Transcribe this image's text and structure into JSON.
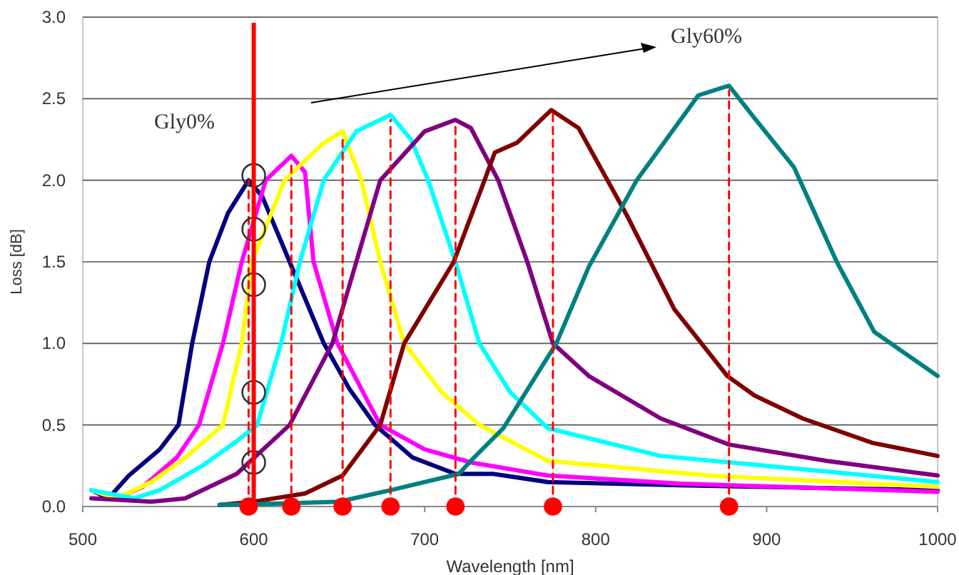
{
  "chart_data": {
    "type": "line",
    "xlabel": "Wavelength [nm]",
    "ylabel": "Loss [dB]",
    "xlim": [
      500,
      1000
    ],
    "ylim": [
      0,
      3
    ],
    "xticks": [
      500,
      600,
      700,
      800,
      900,
      1000
    ],
    "yticks": [
      {
        "value": 0,
        "label": "0.0"
      },
      {
        "value": 0.5,
        "label": "0.5"
      },
      {
        "value": 1,
        "label": "1.0"
      },
      {
        "value": 1.5,
        "label": "1.5"
      },
      {
        "value": 2,
        "label": "2.0"
      },
      {
        "value": 2.5,
        "label": "2.5"
      },
      {
        "value": 3,
        "label": "3.0"
      }
    ],
    "grid": "y",
    "marker": "none",
    "line_style": "solid",
    "annotations": [
      "Gly0%",
      "Gly60%"
    ],
    "ref_lines": [
      {
        "axis": "x",
        "value": 600,
        "color": "#ff0000"
      }
    ],
    "series": [
      {
        "color": "#000080",
        "x": [
          505,
          515,
          527,
          545,
          556,
          564,
          574,
          585,
          597,
          605,
          613,
          621,
          641,
          656,
          671,
          693,
          718,
          740,
          772,
          850,
          1000
        ],
        "values": [
          0.1,
          0.05,
          0.19,
          0.35,
          0.5,
          1.0,
          1.5,
          1.8,
          2.0,
          1.9,
          1.7,
          1.5,
          1.0,
          0.72,
          0.5,
          0.3,
          0.2,
          0.2,
          0.15,
          0.13,
          0.1
        ]
      },
      {
        "color": "#ff00ff",
        "x": [
          505,
          520,
          535,
          555,
          568,
          582,
          593,
          607,
          622,
          630,
          635,
          649,
          674,
          700,
          727,
          772,
          850,
          1000
        ],
        "values": [
          0.1,
          0.05,
          0.12,
          0.3,
          0.5,
          1.0,
          1.5,
          2.0,
          2.15,
          2.05,
          1.5,
          1.0,
          0.5,
          0.35,
          0.27,
          0.19,
          0.14,
          0.09
        ]
      },
      {
        "color": "#ffff00",
        "x": [
          505,
          520,
          540,
          560,
          582,
          593,
          599,
          618,
          640,
          652,
          663,
          674,
          688,
          710,
          732,
          772,
          866,
          1000
        ],
        "values": [
          0.1,
          0.05,
          0.15,
          0.3,
          0.5,
          1.0,
          1.5,
          2.0,
          2.22,
          2.3,
          2.0,
          1.5,
          1.0,
          0.7,
          0.5,
          0.28,
          0.19,
          0.12
        ]
      },
      {
        "color": "#00ffff",
        "x": [
          505,
          530,
          545,
          570,
          590,
          602,
          616,
          627,
          641,
          660,
          680,
          692,
          702,
          718,
          732,
          750,
          772,
          838,
          1000
        ],
        "values": [
          0.1,
          0.05,
          0.1,
          0.25,
          0.4,
          0.5,
          1.0,
          1.5,
          2.0,
          2.3,
          2.4,
          2.25,
          2.0,
          1.5,
          1.0,
          0.7,
          0.48,
          0.31,
          0.15
        ]
      },
      {
        "color": "#800080",
        "x": [
          505,
          540,
          560,
          590,
          621,
          646,
          660,
          674,
          700,
          718,
          727,
          743,
          760,
          775,
          796,
          838,
          878,
          935,
          1000
        ],
        "values": [
          0.05,
          0.03,
          0.05,
          0.2,
          0.5,
          1.0,
          1.5,
          2.0,
          2.3,
          2.37,
          2.32,
          2.0,
          1.5,
          1.0,
          0.8,
          0.54,
          0.38,
          0.28,
          0.19
        ]
      },
      {
        "color": "#800000",
        "x": [
          580,
          600,
          630,
          652,
          674,
          688,
          717,
          735,
          741,
          754,
          774,
          790,
          818,
          846,
          877,
          893,
          921,
          962,
          1000
        ],
        "values": [
          0.01,
          0.03,
          0.08,
          0.19,
          0.5,
          1.0,
          1.5,
          2.0,
          2.17,
          2.23,
          2.43,
          2.32,
          1.79,
          1.21,
          0.8,
          0.68,
          0.54,
          0.39,
          0.31
        ]
      },
      {
        "color": "#008080",
        "x": [
          580,
          620,
          650,
          680,
          720,
          727,
          746,
          777,
          796,
          824,
          860,
          878,
          893,
          916,
          941,
          963,
          1000
        ],
        "values": [
          0.01,
          0.02,
          0.03,
          0.1,
          0.2,
          0.28,
          0.48,
          1.0,
          1.47,
          2.0,
          2.52,
          2.58,
          2.38,
          2.08,
          1.5,
          1.07,
          0.8
        ]
      },
      {
        "color": "#ff0000",
        "line_style": "dashed",
        "x": [
          597,
          597
        ],
        "values": [
          0,
          2.0
        ]
      },
      {
        "color": "#ff0000",
        "line_style": "dashed",
        "x": [
          622,
          622
        ],
        "values": [
          0,
          2.1
        ]
      },
      {
        "color": "#ff0000",
        "line_style": "dashed",
        "x": [
          652,
          652
        ],
        "values": [
          0,
          2.27
        ]
      },
      {
        "color": "#ff0000",
        "line_style": "dashed",
        "x": [
          680,
          680
        ],
        "values": [
          0,
          2.37
        ]
      },
      {
        "color": "#ff0000",
        "line_style": "dashed",
        "x": [
          718,
          718
        ],
        "values": [
          0,
          2.35
        ]
      },
      {
        "color": "#ff0000",
        "line_style": "dashed",
        "x": [
          775,
          775
        ],
        "values": [
          0,
          2.43
        ]
      },
      {
        "color": "#ff0000",
        "line_style": "dashed",
        "x": [
          878,
          878
        ],
        "values": [
          0,
          2.55
        ]
      },
      {
        "type": "scatter",
        "marker": "circle",
        "color": "#ff0000",
        "x": [
          597,
          622,
          652,
          680,
          718,
          775,
          878
        ],
        "values": [
          0,
          0,
          0,
          0,
          0,
          0,
          0
        ]
      },
      {
        "type": "scatter",
        "marker": "circle",
        "color": "#333333",
        "x": [
          600,
          600,
          600,
          600,
          600
        ],
        "values": [
          2.03,
          1.7,
          1.36,
          0.7,
          0.27
        ]
      }
    ]
  }
}
